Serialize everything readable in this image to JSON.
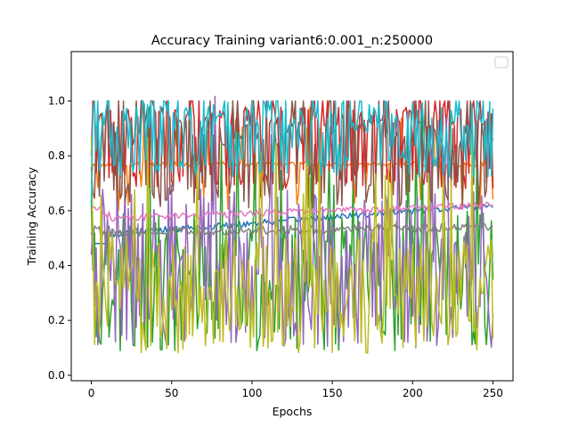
{
  "chart_data": {
    "type": "line",
    "title": "Accuracy Training variant6:0.001_n:250000",
    "xlabel": "Epochs",
    "ylabel": "Training Accuracy",
    "xlim": [
      -12.5,
      262.5
    ],
    "ylim": [
      -0.02,
      1.18
    ],
    "xticks": [
      0,
      50,
      100,
      150,
      200,
      250
    ],
    "yticks": [
      0.0,
      0.2,
      0.4,
      0.6,
      0.8,
      1.0
    ],
    "grid": false,
    "legend": {
      "placement": "top-right",
      "entries": []
    },
    "epochs": 250,
    "series": [
      {
        "color": "#1f77b4",
        "kind": "smooth",
        "start": 0.39,
        "level": 0.51,
        "end": 0.62,
        "noise": 0.012,
        "min": 0.48,
        "max": 0.64
      },
      {
        "color": "#ff7f0e",
        "kind": "plateau_dips",
        "start": 0.7,
        "level": 0.77,
        "noise": 0.008,
        "dip_to": 0.6,
        "dip_prob": 0.08,
        "min": 0.58,
        "max": 1.0
      },
      {
        "color": "#2ca02c",
        "kind": "noisy",
        "start": 0.64,
        "level": 0.34,
        "spread": 0.26,
        "min": 0.09,
        "max": 1.06
      },
      {
        "color": "#d62728",
        "kind": "binary",
        "start": 0.8,
        "hi": 0.94,
        "lo": 0.72,
        "spread": 0.08,
        "min": 0.62,
        "max": 1.0
      },
      {
        "color": "#9467bd",
        "kind": "noisy",
        "start": 0.44,
        "level": 0.4,
        "spread": 0.3,
        "min": 0.06,
        "max": 1.14
      },
      {
        "color": "#8c564b",
        "kind": "binary",
        "start": 0.76,
        "hi": 0.88,
        "lo": 0.66,
        "spread": 0.1,
        "min": 0.56,
        "max": 1.0
      },
      {
        "color": "#e377c2",
        "kind": "smooth",
        "start": 0.6,
        "level": 0.57,
        "end": 0.62,
        "noise": 0.012,
        "min": 0.52,
        "max": 0.65
      },
      {
        "color": "#7f7f7f",
        "kind": "smooth",
        "start": 0.52,
        "level": 0.52,
        "end": 0.54,
        "noise": 0.015,
        "min": 0.45,
        "max": 0.6
      },
      {
        "color": "#bcbd22",
        "kind": "noisy",
        "start": 0.87,
        "level": 0.3,
        "spread": 0.22,
        "min": 0.04,
        "max": 0.9
      },
      {
        "color": "#17becf",
        "kind": "binary",
        "start": 0.62,
        "hi": 0.94,
        "lo": 0.78,
        "spread": 0.12,
        "min": 0.45,
        "max": 1.0
      }
    ]
  }
}
